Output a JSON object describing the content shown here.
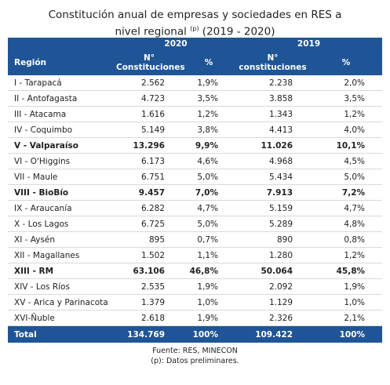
{
  "title": {
    "line1": "Constitución anual de empresas y sociedades en RES a",
    "line2": "nivel regional",
    "superscript": "(p)",
    "line2_end": "(2019 - 2020)"
  },
  "table": {
    "years": [
      "2020",
      "2019"
    ],
    "header": {
      "region": "Región",
      "count_2020": [
        "N°",
        "Constituciones"
      ],
      "pct_2020": "%",
      "count_2019": [
        "N°",
        "constituciones"
      ],
      "pct_2019": "%"
    },
    "rows": [
      {
        "cells": [
          "I - Tarapacá",
          "2.562",
          "1,9%",
          "2.238",
          "2,0%"
        ],
        "bold": false
      },
      {
        "cells": [
          "II - Antofagasta",
          "4.723",
          "3,5%",
          "3.858",
          "3,5%"
        ],
        "bold": false
      },
      {
        "cells": [
          "III - Atacama",
          "1.616",
          "1,2%",
          "1.343",
          "1,2%"
        ],
        "bold": false
      },
      {
        "cells": [
          "IV - Coquimbo",
          "5.149",
          "3,8%",
          "4.413",
          "4,0%"
        ],
        "bold": false
      },
      {
        "cells": [
          "V - Valparaíso",
          "13.296",
          "9,9%",
          "11.026",
          "10,1%"
        ],
        "bold": true
      },
      {
        "cells": [
          "VI - O'Higgins",
          "6.173",
          "4,6%",
          "4.968",
          "4,5%"
        ],
        "bold": false
      },
      {
        "cells": [
          "VII - Maule",
          "6.751",
          "5,0%",
          "5.434",
          "5,0%"
        ],
        "bold": false
      },
      {
        "cells": [
          "VIII - BioBío",
          "9.457",
          "7,0%",
          "7.913",
          "7,2%"
        ],
        "bold": true
      },
      {
        "cells": [
          "IX - Araucanía",
          "6.282",
          "4,7%",
          "5.159",
          "4,7%"
        ],
        "bold": false
      },
      {
        "cells": [
          "X - Los Lagos",
          "6.725",
          "5,0%",
          "5.289",
          "4,8%"
        ],
        "bold": false
      },
      {
        "cells": [
          "XI - Aysén",
          "895",
          "0,7%",
          "890",
          "0,8%"
        ],
        "bold": false
      },
      {
        "cells": [
          "XII - Magallanes",
          "1.502",
          "1,1%",
          "1.280",
          "1,2%"
        ],
        "bold": false
      },
      {
        "cells": [
          "XIII - RM",
          "63.106",
          "46,8%",
          "50.064",
          "45,8%"
        ],
        "bold": true
      },
      {
        "cells": [
          "XIV - Los Ríos",
          "2.535",
          "1,9%",
          "2.092",
          "1,9%"
        ],
        "bold": false
      },
      {
        "cells": [
          "XV - Arica y Parinacota",
          "1.379",
          "1,0%",
          "1.129",
          "1,0%"
        ],
        "bold": false
      },
      {
        "cells": [
          "XVI-Ñuble",
          "2.618",
          "1,9%",
          "2.326",
          "2,1%"
        ],
        "bold": false
      }
    ],
    "total": [
      "Total",
      "134.769",
      "100%",
      "109.422",
      "100%"
    ]
  },
  "footer": {
    "source": "Fuente: RES, MINECON",
    "note": "(p): Datos preliminares."
  }
}
